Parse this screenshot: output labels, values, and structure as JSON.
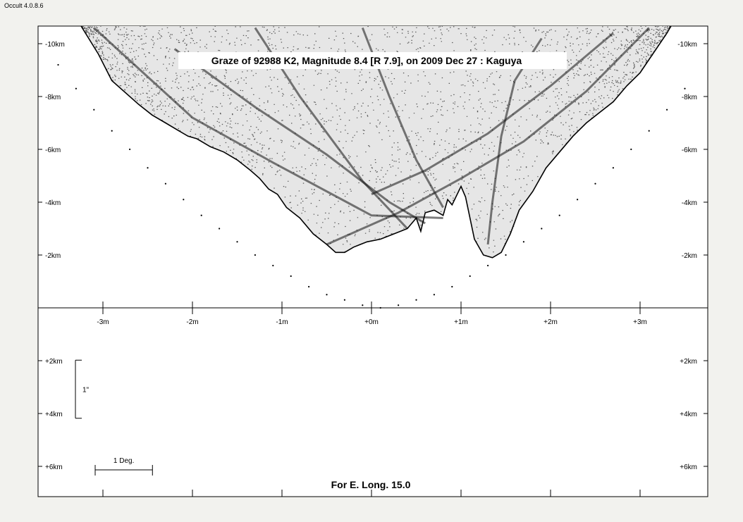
{
  "app": {
    "version_label": "Occult 4.0.8.6"
  },
  "chart_data": {
    "type": "scatter",
    "title": "Graze of  92988 K2,  Magnitude 8.4 [R 7.9],  on 2009 Dec 27  :  Kaguya",
    "footer": "For E. Long. 15.0",
    "x_axis": {
      "unit": "minutes",
      "ticks": [
        -3,
        -2,
        -1,
        0,
        1,
        2,
        3
      ],
      "tick_labels": [
        "-3m",
        "-2m",
        "-1m",
        "+0m",
        "+1m",
        "+2m",
        "+3m"
      ],
      "range": [
        -3.7,
        3.8
      ]
    },
    "y_axis": {
      "unit": "km",
      "ticks": [
        -10,
        -8,
        -6,
        -4,
        -2,
        2,
        4,
        6
      ],
      "tick_labels": [
        "-10km",
        "-8km",
        "-6km",
        "-4km",
        "-2km",
        "+2km",
        "+4km",
        "+6km"
      ],
      "range": [
        -10.7,
        7.1
      ]
    },
    "scale_bars": {
      "arcsec_label": "1\"",
      "arcsec_km": 2.2,
      "degree_label": "1 Deg.",
      "degree_minutes": 0.64
    },
    "series": [
      {
        "role": "mean_limb_profile",
        "style": "dotted",
        "x": [
          -3.5,
          -3.3,
          -3.1,
          -2.9,
          -2.7,
          -2.5,
          -2.3,
          -2.1,
          -1.9,
          -1.7,
          -1.5,
          -1.3,
          -1.1,
          -0.9,
          -0.7,
          -0.5,
          -0.3,
          -0.1,
          0.1,
          0.3,
          0.5,
          0.7,
          0.9,
          1.1,
          1.3,
          1.5,
          1.7,
          1.9,
          2.1,
          2.3,
          2.5,
          2.7,
          2.9,
          3.1,
          3.3,
          3.5
        ],
        "y": [
          -9.2,
          -8.3,
          -7.5,
          -6.7,
          -6.0,
          -5.3,
          -4.7,
          -4.1,
          -3.5,
          -3.0,
          -2.5,
          -2.0,
          -1.6,
          -1.2,
          -0.8,
          -0.5,
          -0.3,
          -0.1,
          0.0,
          -0.1,
          -0.3,
          -0.5,
          -0.8,
          -1.2,
          -1.6,
          -2.0,
          -2.5,
          -3.0,
          -3.5,
          -4.1,
          -4.7,
          -5.3,
          -6.0,
          -6.7,
          -7.5,
          -8.3
        ]
      },
      {
        "role": "observed_limb_profile",
        "style": "filled_scatter_cloud",
        "x": [
          -3.25,
          -3.05,
          -2.9,
          -2.6,
          -2.45,
          -2.3,
          -2.15,
          -2.05,
          -1.95,
          -1.8,
          -1.65,
          -1.5,
          -1.35,
          -1.25,
          -1.15,
          -1.05,
          -0.95,
          -0.8,
          -0.65,
          -0.5,
          -0.4,
          -0.3,
          -0.2,
          -0.05,
          0.1,
          0.25,
          0.4,
          0.5,
          0.55,
          0.6,
          0.7,
          0.8,
          0.85,
          0.9,
          1.0,
          1.05,
          1.15,
          1.25,
          1.35,
          1.45,
          1.55,
          1.65,
          1.8,
          1.95,
          2.1,
          2.25,
          2.4,
          2.55,
          2.7,
          2.85,
          3.0,
          3.1,
          3.2,
          3.3,
          3.35
        ],
        "y": [
          -10.7,
          -9.6,
          -8.6,
          -7.7,
          -7.3,
          -7.0,
          -6.7,
          -6.5,
          -6.4,
          -6.1,
          -5.9,
          -5.6,
          -5.2,
          -4.9,
          -4.5,
          -4.3,
          -3.8,
          -3.4,
          -2.8,
          -2.4,
          -2.1,
          -2.1,
          -2.3,
          -2.5,
          -2.6,
          -2.8,
          -3.0,
          -3.4,
          -2.9,
          -3.6,
          -3.7,
          -3.5,
          -4.1,
          -3.9,
          -4.6,
          -4.2,
          -2.6,
          -2.0,
          -1.9,
          -2.1,
          -2.8,
          -3.7,
          -4.4,
          -5.3,
          -5.9,
          -6.5,
          -7.0,
          -7.4,
          -7.8,
          -8.4,
          -8.9,
          -9.4,
          -9.9,
          -10.4,
          -10.7
        ]
      }
    ],
    "colors": {
      "plot_background": "#ffffff",
      "marks": "#000000",
      "page_background": "#f2f2ee"
    }
  }
}
